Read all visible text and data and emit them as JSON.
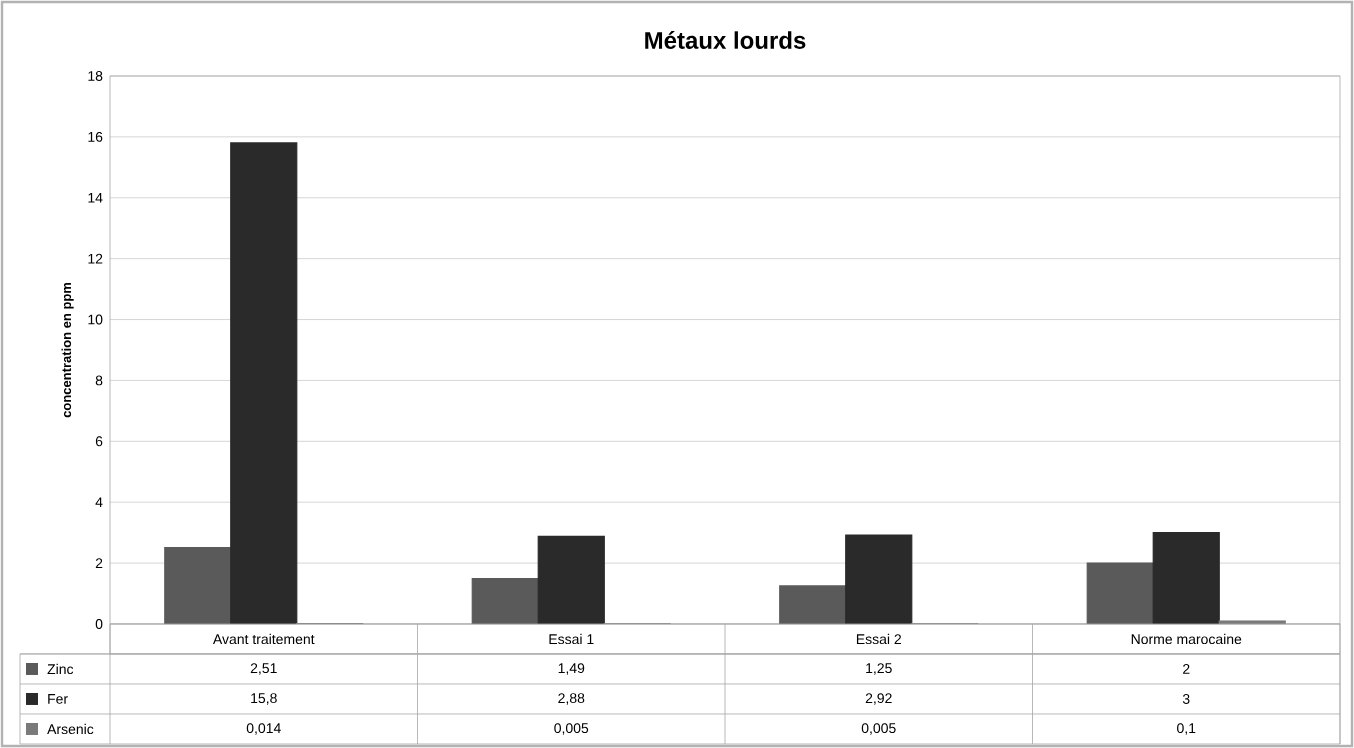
{
  "chart_data": {
    "type": "bar",
    "title": "Métaux lourds",
    "ylabel": "concentration en ppm",
    "categories": [
      "Avant traitement",
      "Essai 1",
      "Essai 2",
      "Norme marocaine"
    ],
    "series": [
      {
        "name": "Zinc",
        "color": "#5a5a5a",
        "values": [
          2.51,
          1.49,
          1.25,
          2
        ],
        "value_labels": [
          "2,51",
          "1,49",
          "1,25",
          "2"
        ]
      },
      {
        "name": "Fer",
        "color": "#2a2a2a",
        "values": [
          15.8,
          2.88,
          2.92,
          3
        ],
        "value_labels": [
          "15,8",
          "2,88",
          "2,92",
          "3"
        ]
      },
      {
        "name": "Arsenic",
        "color": "#7a7a7a",
        "values": [
          0.014,
          0.005,
          0.005,
          0.1
        ],
        "value_labels": [
          "0,014",
          "0,005",
          "0,005",
          "0,1"
        ]
      }
    ],
    "ylim": [
      0,
      18
    ],
    "yticks": [
      0,
      2,
      4,
      6,
      8,
      10,
      12,
      14,
      16,
      18
    ],
    "grid": "y",
    "legend": "bottom"
  }
}
